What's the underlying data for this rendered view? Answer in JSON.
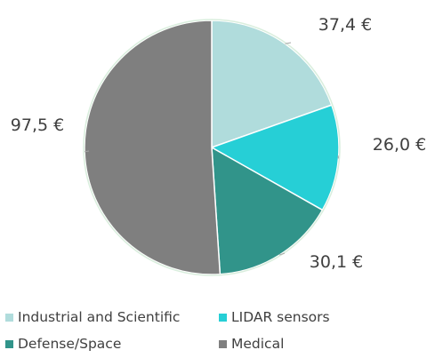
{
  "chart_data": {
    "type": "pie",
    "categories": [
      "Industrial and Scientific",
      "LIDAR sensors",
      "Defense/Space",
      "Medical"
    ],
    "values": [
      37.4,
      26.0,
      30.1,
      97.5
    ],
    "data_labels": [
      "37,4 €",
      "26,0 €",
      "30,1 €",
      "97,5 €"
    ],
    "colors": [
      "#b0dcdc",
      "#26cfd6",
      "#31948a",
      "#7f7f7f"
    ],
    "legend_position": "bottom",
    "start_angle": "top, clockwise"
  }
}
